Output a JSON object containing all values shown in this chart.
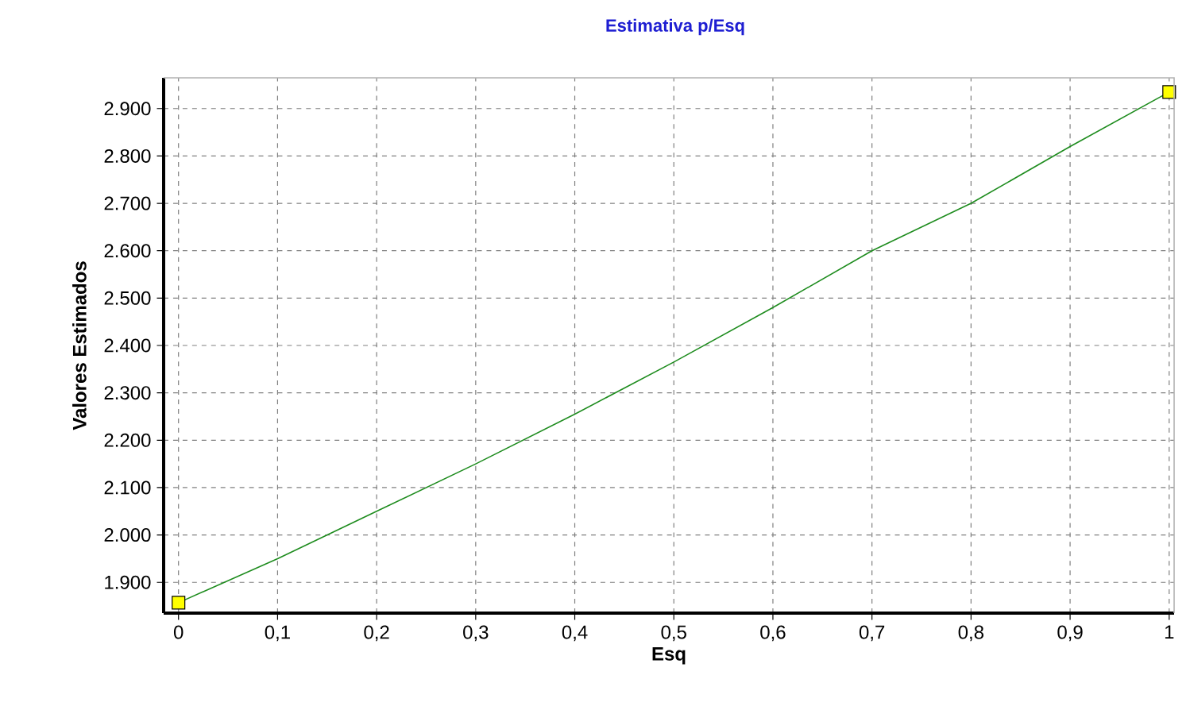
{
  "chart_data": {
    "type": "line",
    "title": "Estimativa p/Esq",
    "xlabel": "Esq",
    "ylabel": "Valores Estimados",
    "xlim": [
      -0.015,
      1.005
    ],
    "ylim": [
      1835,
      2965
    ],
    "xticks": [
      0,
      {
        "value": 0.1,
        "label": "0,1"
      },
      {
        "value": 0.2,
        "label": "0,2"
      },
      {
        "value": 0.3,
        "label": "0,3"
      },
      {
        "value": 0.4,
        "label": "0,4"
      },
      {
        "value": 0.5,
        "label": "0,5"
      },
      {
        "value": 0.6,
        "label": "0,6"
      },
      {
        "value": 0.7,
        "label": "0,7"
      },
      {
        "value": 0.8,
        "label": "0,8"
      },
      {
        "value": 0.9,
        "label": "0,9"
      },
      1
    ],
    "yticks": [
      {
        "value": 1900,
        "label": "1.900"
      },
      {
        "value": 2000,
        "label": "2.000"
      },
      {
        "value": 2100,
        "label": "2.100"
      },
      {
        "value": 2200,
        "label": "2.200"
      },
      {
        "value": 2300,
        "label": "2.300"
      },
      {
        "value": 2400,
        "label": "2.400"
      },
      {
        "value": 2500,
        "label": "2.500"
      },
      {
        "value": 2600,
        "label": "2.600"
      },
      {
        "value": 2700,
        "label": "2.700"
      },
      {
        "value": 2800,
        "label": "2.800"
      },
      {
        "value": 2900,
        "label": "2.900"
      }
    ],
    "grid": true,
    "series": [
      {
        "color": "#1e8c1e",
        "x": [
          0,
          0.1,
          0.2,
          0.3,
          0.4,
          0.5,
          0.6,
          0.7,
          0.8,
          0.9,
          1.0
        ],
        "values": [
          1857,
          1950,
          2050,
          2150,
          2255,
          2365,
          2480,
          2600,
          2700,
          2820,
          2935
        ]
      },
      {
        "type": "scatter",
        "color": "#ffff00",
        "marker": "square",
        "x": [
          0,
          1.0
        ],
        "values": [
          1857,
          2935
        ]
      }
    ]
  }
}
